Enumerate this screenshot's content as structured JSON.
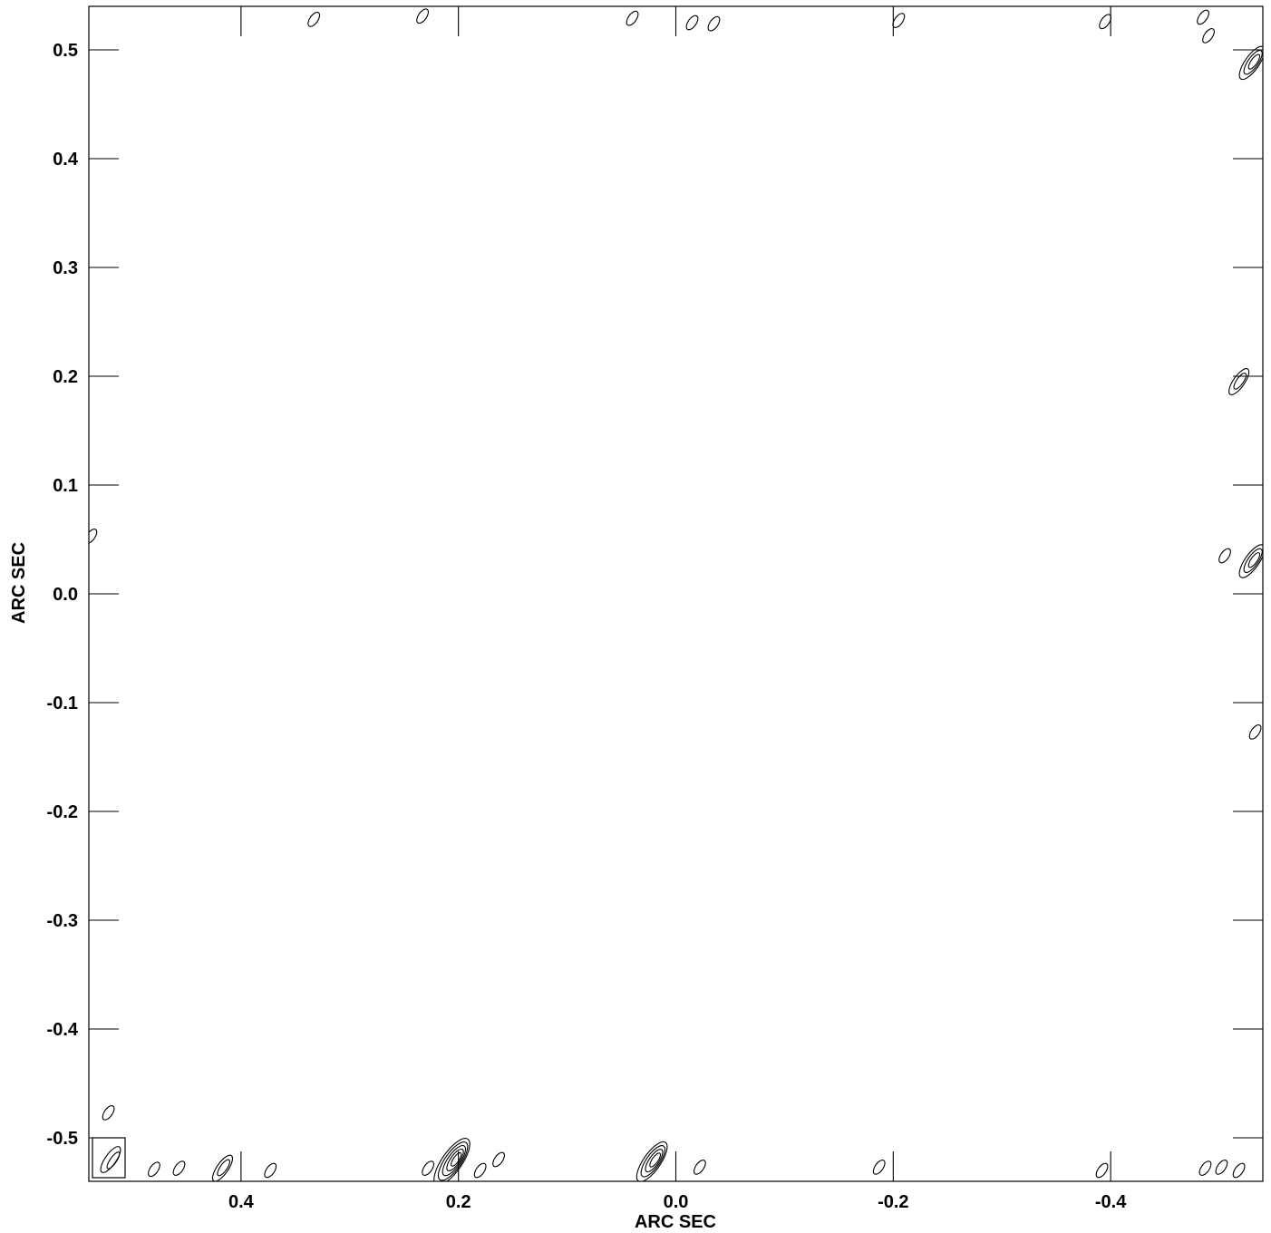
{
  "chart_data": {
    "type": "contour",
    "xlabel": "ARC SEC",
    "ylabel": "ARC SEC",
    "xlim": [
      0.54,
      -0.54
    ],
    "ylim": [
      -0.54,
      0.54
    ],
    "x_ticks": [
      0.4,
      0.2,
      0.0,
      -0.2,
      -0.4
    ],
    "x_tick_labels": [
      "0.4",
      "0.2",
      "0.0",
      "-0.2",
      "-0.4"
    ],
    "y_ticks": [
      0.5,
      0.4,
      0.3,
      0.2,
      0.1,
      0.0,
      -0.1,
      -0.2,
      -0.3,
      -0.4,
      -0.5
    ],
    "y_tick_labels": [
      "0.5",
      "0.4",
      "0.3",
      "0.2",
      "0.1",
      "0.0",
      "-0.1",
      "-0.2",
      "-0.3",
      "-0.4",
      "-0.5"
    ],
    "grid": false,
    "beam": {
      "x": 0.52,
      "y": -0.52
    },
    "contours": [
      {
        "x": 0.206,
        "y": -0.522,
        "levels": 5
      },
      {
        "x": 0.228,
        "y": -0.528,
        "levels": 1
      },
      {
        "x": 0.022,
        "y": -0.522,
        "levels": 4
      },
      {
        "x": -0.022,
        "y": -0.527,
        "levels": 1
      },
      {
        "x": 0.417,
        "y": -0.528,
        "levels": 2
      },
      {
        "x": 0.457,
        "y": -0.528,
        "levels": 1
      },
      {
        "x": 0.48,
        "y": -0.529,
        "levels": 1
      },
      {
        "x": 0.373,
        "y": -0.53,
        "levels": 1
      },
      {
        "x": 0.18,
        "y": -0.53,
        "levels": 1
      },
      {
        "x": 0.163,
        "y": -0.52,
        "levels": 1
      },
      {
        "x": -0.187,
        "y": -0.527,
        "levels": 1
      },
      {
        "x": -0.392,
        "y": -0.53,
        "levels": 1
      },
      {
        "x": -0.487,
        "y": -0.528,
        "levels": 1
      },
      {
        "x": -0.502,
        "y": -0.527,
        "levels": 1
      },
      {
        "x": -0.518,
        "y": -0.53,
        "levels": 1
      },
      {
        "x": 0.522,
        "y": -0.477,
        "levels": 1
      },
      {
        "x": -0.53,
        "y": 0.488,
        "levels": 3
      },
      {
        "x": -0.53,
        "y": 0.03,
        "levels": 3
      },
      {
        "x": -0.505,
        "y": 0.035,
        "levels": 1
      },
      {
        "x": -0.518,
        "y": 0.195,
        "levels": 2
      },
      {
        "x": -0.533,
        "y": -0.127,
        "levels": 1
      },
      {
        "x": -0.395,
        "y": 0.526,
        "levels": 1
      },
      {
        "x": -0.485,
        "y": 0.53,
        "levels": 1
      },
      {
        "x": -0.49,
        "y": 0.513,
        "levels": 1
      },
      {
        "x": -0.205,
        "y": 0.527,
        "levels": 1
      },
      {
        "x": -0.035,
        "y": 0.524,
        "levels": 1
      },
      {
        "x": -0.015,
        "y": 0.525,
        "levels": 1
      },
      {
        "x": 0.04,
        "y": 0.529,
        "levels": 1
      },
      {
        "x": 0.233,
        "y": 0.531,
        "levels": 1
      },
      {
        "x": 0.333,
        "y": 0.528,
        "levels": 1
      },
      {
        "x": 0.538,
        "y": 0.053,
        "levels": 1
      }
    ]
  }
}
